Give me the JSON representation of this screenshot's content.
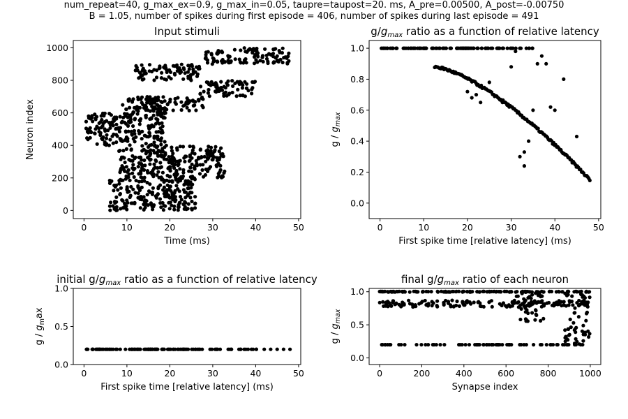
{
  "figure": {
    "suptitle_line1": "num_repeat=40, g_max_ex=0.9, g_max_in=0.05, taupre=taupost=20. ms, A_pre=0.00500, A_post=-0.00750",
    "suptitle_line2": "B = 1.05, number of spikes during first episode = 406, number of spikes during last episode = 491"
  },
  "chart_data": [
    {
      "id": "input-stimuli",
      "type": "scatter",
      "title": "Input stimuli",
      "xlabel": "Time (ms)",
      "ylabel": "Neuron index",
      "xlim": [
        -2.5,
        50.5
      ],
      "ylim": [
        -50,
        1045
      ],
      "xticks": [
        0,
        10,
        20,
        30,
        40,
        50
      ],
      "yticks": [
        0,
        200,
        400,
        600,
        800,
        1000
      ],
      "marker_color": "#000000",
      "clusters": [
        {
          "x": [
            6,
            26
          ],
          "y": [
            0,
            200
          ]
        },
        {
          "x": [
            8,
            20
          ],
          "y": [
            200,
            400
          ]
        },
        {
          "x": [
            20,
            33
          ],
          "y": [
            200,
            400
          ]
        },
        {
          "x": [
            0.5,
            10
          ],
          "y": [
            400,
            600
          ]
        },
        {
          "x": [
            10,
            19
          ],
          "y": [
            400,
            600
          ]
        },
        {
          "x": [
            15,
            28
          ],
          "y": [
            600,
            700
          ]
        },
        {
          "x": [
            9,
            18
          ],
          "y": [
            600,
            700
          ]
        },
        {
          "x": [
            12,
            27
          ],
          "y": [
            800,
            900
          ]
        },
        {
          "x": [
            27,
            40
          ],
          "y": [
            700,
            800
          ]
        },
        {
          "x": [
            28,
            48
          ],
          "y": [
            900,
            1000
          ]
        }
      ]
    },
    {
      "id": "ratio-vs-latency",
      "type": "scatter",
      "title": "g/g_max ratio as a function of relative latency",
      "title_prefix": "g/",
      "title_italic": "g",
      "title_sub": "max",
      "title_suffix": " ratio as a function of relative latency",
      "xlabel": "First spike time [relative latency] (ms)",
      "ylabel": "g / g_max",
      "ylabel_prefix": "g / ",
      "ylabel_italic": "g",
      "ylabel_sub": "max",
      "xlim": [
        -2.5,
        50.5
      ],
      "ylim": [
        -0.1,
        1.05
      ],
      "xticks": [
        0,
        10,
        20,
        30,
        40,
        50
      ],
      "yticks": [
        0.0,
        0.2,
        0.4,
        0.6,
        0.8,
        1.0
      ],
      "marker_color": "#000000",
      "series": [
        {
          "shape": "flat",
          "x_range": [
            0,
            35
          ],
          "y": 1.0
        },
        {
          "shape": "curve",
          "x_range": [
            12.5,
            48
          ],
          "y_start": 0.88,
          "y_end": 0.15
        },
        {
          "shape": "scatter",
          "points": [
            [
              20,
              0.72
            ],
            [
              21,
              0.68
            ],
            [
              23,
              0.65
            ],
            [
              28,
              0.65
            ],
            [
              33,
              0.33
            ],
            [
              33,
              0.24
            ],
            [
              34,
              0.4
            ],
            [
              35,
              0.6
            ],
            [
              36,
              0.9
            ],
            [
              37,
              0.95
            ],
            [
              38,
              0.9
            ],
            [
              39,
              0.62
            ],
            [
              40,
              0.6
            ],
            [
              42,
              0.8
            ],
            [
              45,
              0.43
            ],
            [
              30,
              0.88
            ],
            [
              31,
              0.98
            ],
            [
              22,
              0.7
            ],
            [
              25,
              0.78
            ],
            [
              32,
              0.3
            ]
          ]
        }
      ]
    },
    {
      "id": "initial-ratio",
      "type": "scatter",
      "title": "initial g/g_max ratio as a function of relative latency",
      "title_prefix": "initial g/",
      "title_italic": "g",
      "title_sub": "max",
      "title_suffix": " ratio as a function of relative latency",
      "xlabel": "First spike time [relative latency] (ms)",
      "ylabel": "g / g_max",
      "ylabel_prefix": "g / ",
      "ylabel_italic": "g",
      "ylabel_mid": "m",
      "ylabel_rest": "ax",
      "xlim": [
        -2.5,
        50.5
      ],
      "ylim": [
        0.0,
        1.0
      ],
      "xticks": [
        0,
        10,
        20,
        30,
        40,
        50
      ],
      "yticks": [
        0.0,
        0.5,
        1.0
      ],
      "marker_color": "#000000",
      "series": [
        {
          "shape": "flat",
          "x_range": [
            0.5,
            40.5
          ],
          "y": 0.2
        },
        {
          "shape": "scatter",
          "points": [
            [
              42,
              0.2
            ],
            [
              43.5,
              0.2
            ],
            [
              45,
              0.2
            ],
            [
              46.5,
              0.2
            ],
            [
              48,
              0.2
            ]
          ]
        }
      ]
    },
    {
      "id": "final-ratio",
      "type": "scatter",
      "title": "final g/g_max ratio of each neuron",
      "title_prefix": "final g/",
      "title_italic": "g",
      "title_sub": "max",
      "title_suffix": " ratio of each neuron",
      "xlabel": "Synapse index",
      "ylabel": "g / g_max",
      "ylabel_prefix": "g / ",
      "ylabel_italic": "g",
      "ylabel_sub": "max",
      "xlim": [
        -50,
        1050
      ],
      "ylim": [
        -0.1,
        1.05
      ],
      "xticks": [
        0,
        200,
        400,
        600,
        800,
        1000
      ],
      "yticks": [
        0.0,
        0.5,
        1.0
      ],
      "marker_color": "#000000",
      "series": [
        {
          "shape": "band",
          "x_range": [
            0,
            1000
          ],
          "y": 1.0
        },
        {
          "shape": "band",
          "x_range": [
            0,
            1000
          ],
          "y": 0.82,
          "spread": 0.05
        },
        {
          "shape": "band_sparse",
          "x_range": [
            0,
            1000
          ],
          "y": 0.2
        },
        {
          "shape": "scatter_dense",
          "x_range": [
            880,
            1000
          ],
          "y_range": [
            0.2,
            1.0
          ]
        },
        {
          "shape": "scatter_dense",
          "x_range": [
            650,
            780
          ],
          "y_range": [
            0.55,
            1.0
          ]
        }
      ]
    }
  ]
}
